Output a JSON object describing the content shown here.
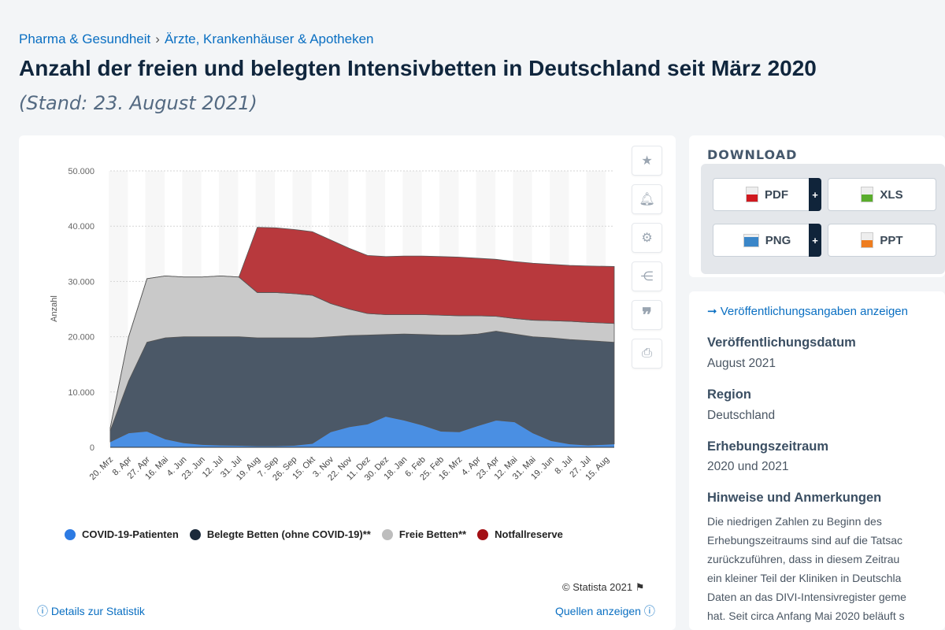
{
  "breadcrumb": {
    "items": [
      "Pharma & Gesundheit",
      "Ärzte, Krankenhäuser & Apotheken"
    ],
    "sep": "›"
  },
  "title": "Anzahl der freien und belegten Intensivbetten in Deutschland seit März 2020",
  "subtitle": "(Stand: 23. August 2021)",
  "tools": [
    "star-icon",
    "bell-icon",
    "gear-icon",
    "share-icon",
    "quote-icon",
    "print-icon"
  ],
  "chart_data": {
    "type": "area",
    "stacked": true,
    "ylabel": "Anzahl",
    "ylim": [
      0,
      50000
    ],
    "yticks": [
      "0",
      "10.000",
      "20.000",
      "30.000",
      "40.000",
      "50.000"
    ],
    "grid": true,
    "legend_position": "bottom",
    "categories": [
      "20. Mrz",
      "8. Apr",
      "27. Apr",
      "16. Mai",
      "4. Jun",
      "23. Jun",
      "12. Jul",
      "31. Jul",
      "19. Aug",
      "7. Sep",
      "26. Sep",
      "15. Okt",
      "3. Nov",
      "22. Nov",
      "11. Dez",
      "30. Dez",
      "18. Jan",
      "6. Feb",
      "25. Feb",
      "16. Mrz",
      "4. Apr",
      "23. Apr",
      "12. Mai",
      "31. Mai",
      "19. Jun",
      "8. Jul",
      "27. Jul",
      "15. Aug"
    ],
    "series": [
      {
        "name": "COVID-19-Patienten",
        "color": "#4a8fe3",
        "values": [
          1000,
          2600,
          2900,
          1500,
          800,
          500,
          400,
          350,
          250,
          250,
          350,
          700,
          2800,
          3700,
          4200,
          5600,
          4900,
          4000,
          2900,
          2800,
          3900,
          4900,
          4600,
          2600,
          1200,
          600,
          400,
          600
        ]
      },
      {
        "name": "Belegte Betten (ohne COVID-19)**",
        "color": "#4b5867",
        "values": [
          2000,
          9400,
          16100,
          18300,
          19200,
          19500,
          19600,
          19650,
          19550,
          19550,
          19450,
          19100,
          17200,
          16500,
          16100,
          14800,
          15600,
          16400,
          17400,
          17500,
          16600,
          16100,
          15900,
          17400,
          18600,
          18900,
          18900,
          18400
        ]
      },
      {
        "name": "Freie Betten**",
        "color": "#c9c9c9",
        "values": [
          500,
          8000,
          11500,
          11200,
          10800,
          10800,
          11000,
          10800,
          8200,
          8200,
          8000,
          7700,
          6000,
          4800,
          3900,
          3600,
          3500,
          3600,
          3600,
          3500,
          3300,
          2700,
          2800,
          3000,
          3100,
          3300,
          3300,
          3400
        ]
      },
      {
        "name": "Notfallreserve",
        "color": "#b8393d",
        "values": [
          0,
          0,
          0,
          0,
          0,
          0,
          0,
          0,
          11800,
          11700,
          11600,
          11500,
          11500,
          11000,
          10500,
          10500,
          10600,
          10600,
          10600,
          10600,
          10400,
          10300,
          10300,
          10300,
          10200,
          10100,
          10200,
          10300
        ]
      }
    ]
  },
  "legend": [
    {
      "label": "COVID-19-Patienten",
      "color": "#2d7be3"
    },
    {
      "label": "Belegte Betten (ohne COVID-19)**",
      "color": "#1b2a3b"
    },
    {
      "label": "Freie Betten**",
      "color": "#bdbdbd"
    },
    {
      "label": "Notfallreserve",
      "color": "#a30f14"
    }
  ],
  "copyright": "© Statista 2021",
  "details_link": "Details zur Statistik",
  "sources_link": "Quellen anzeigen",
  "download": {
    "title": "DOWNLOAD",
    "buttons": [
      {
        "label": "PDF",
        "color": "#d0191f",
        "plus": "+"
      },
      {
        "label": "XLS",
        "color": "#5aad2d"
      },
      {
        "label": "PNG",
        "color": "#3a86c8",
        "plus": "+"
      },
      {
        "label": "PPT",
        "color": "#ee7d1f"
      }
    ]
  },
  "info": {
    "link": "➞ Veröffentlichungsangaben anzeigen",
    "fields": [
      {
        "label": "Veröffentlichungsdatum",
        "value": "August 2021"
      },
      {
        "label": "Region",
        "value": "Deutschland"
      },
      {
        "label": "Erhebungszeitraum",
        "value": "2020 und 2021"
      }
    ],
    "notes_title": "Hinweise und Anmerkungen",
    "notes_lines": [
      "Die niedrigen Zahlen zu Beginn des",
      "Erhebungszeitraums sind auf die Tatsac",
      "zurückzuführen, dass in diesem Zeitrau",
      "ein kleiner Teil der Kliniken in Deutschla",
      "Daten an das DIVI-Intensivregister geme",
      "hat. Seit circa Anfang Mai 2020 beläuft s"
    ]
  }
}
